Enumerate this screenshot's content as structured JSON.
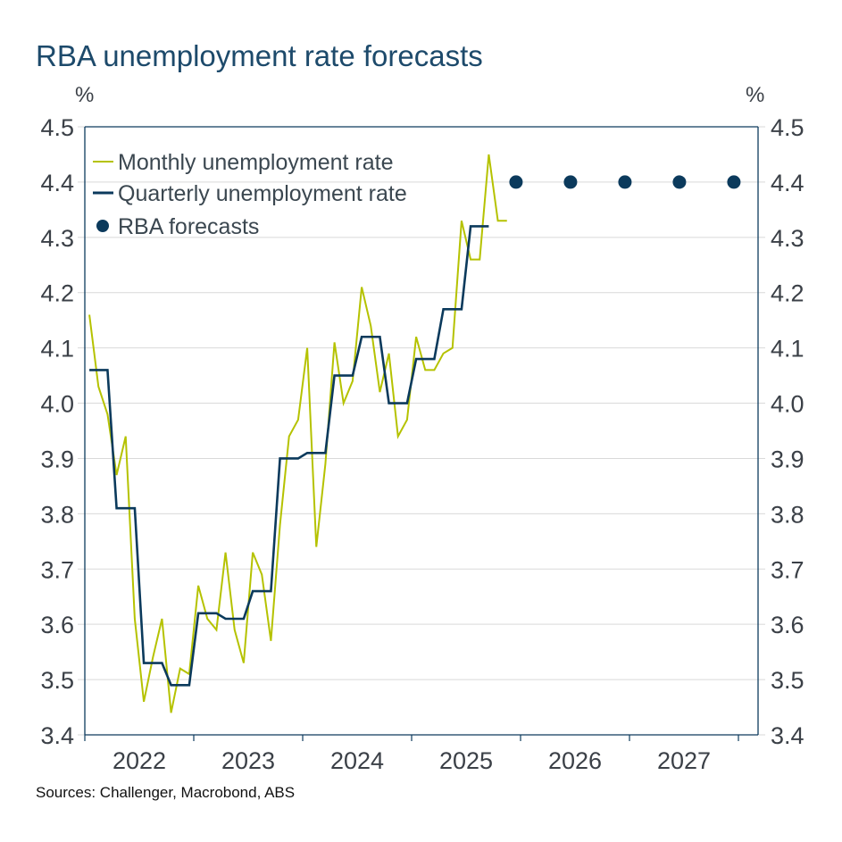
{
  "chart_data": {
    "type": "line",
    "title": "RBA unemployment rate forecasts",
    "ylabel_left": "%",
    "ylabel_right": "%",
    "ylim": [
      3.4,
      4.5
    ],
    "yticks": [
      "4.5",
      "4.4",
      "4.3",
      "4.2",
      "4.1",
      "4.0",
      "3.9",
      "3.8",
      "3.7",
      "3.6",
      "3.5",
      "3.4"
    ],
    "xticks": [
      "2022",
      "2023",
      "2024",
      "2025",
      "2026",
      "2027"
    ],
    "grid": true,
    "legend_position": "top-left",
    "source": "Sources: Challenger, Macrobond, ABS",
    "colors": {
      "monthly": "#b5c200",
      "quarterly": "#0b3a5c",
      "forecast": "#0b3a5c",
      "axis": "#0d3b5e",
      "grid": "#d9d9d9",
      "title": "#1d4a6b"
    },
    "series": [
      {
        "name": "Monthly unemployment rate",
        "style": "line",
        "start": "2022-01",
        "frequency": "monthly",
        "values": [
          4.16,
          4.03,
          3.98,
          3.87,
          3.94,
          3.61,
          3.46,
          3.54,
          3.61,
          3.44,
          3.52,
          3.51,
          3.67,
          3.61,
          3.59,
          3.73,
          3.59,
          3.53,
          3.73,
          3.69,
          3.57,
          3.78,
          3.94,
          3.97,
          4.1,
          3.74,
          3.89,
          4.11,
          4.0,
          4.04,
          4.21,
          4.14,
          4.02,
          4.09,
          3.94,
          3.97,
          4.12,
          4.06,
          4.06,
          4.09,
          4.1,
          4.33,
          4.26,
          4.26,
          4.45,
          4.33,
          4.33
        ]
      },
      {
        "name": "Quarterly unemployment rate",
        "style": "step",
        "start": "2022-Q1",
        "frequency": "quarterly",
        "values": [
          4.06,
          3.81,
          3.53,
          3.49,
          3.62,
          3.61,
          3.66,
          3.9,
          3.91,
          4.05,
          4.12,
          4.0,
          4.08,
          4.17,
          4.32
        ]
      },
      {
        "name": "RBA forecasts",
        "style": "dots",
        "x": [
          "2025-12",
          "2026-06",
          "2026-12",
          "2027-06",
          "2027-12"
        ],
        "values": [
          4.4,
          4.4,
          4.4,
          4.4,
          4.4
        ]
      }
    ]
  }
}
